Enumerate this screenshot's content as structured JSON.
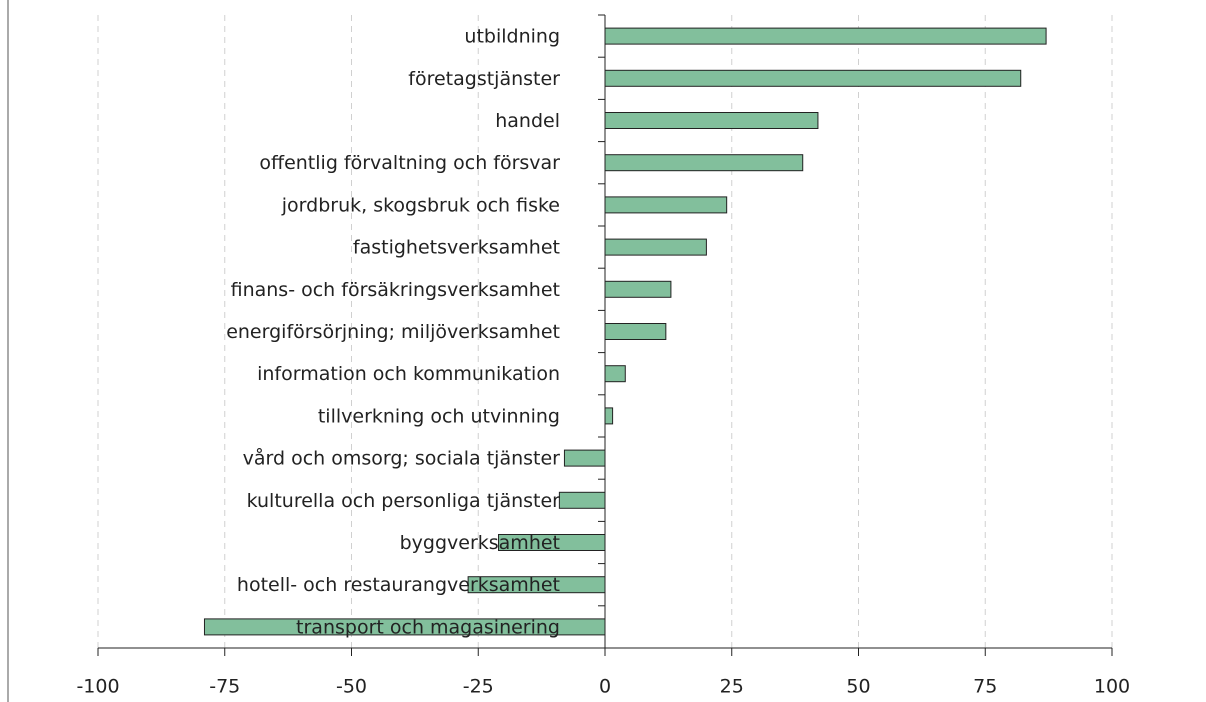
{
  "chart_data": {
    "type": "hbar",
    "categories": [
      "utbildning",
      "företagstjänster",
      "handel",
      "offentlig förvaltning och försvar",
      "jordbruk, skogsbruk och fiske",
      "fastighetsverksamhet",
      "finans- och försäkringsverksamhet",
      "energiförsörjning; miljöverksamhet",
      "information och kommunikation",
      "tillverkning och utvinning",
      "vård och omsorg; sociala tjänster",
      "kulturella och personliga tjänster",
      "byggverksamhet",
      "hotell- och restaurangverksamhet",
      "transport och magasinering"
    ],
    "values": [
      87,
      82,
      42,
      39,
      24,
      20,
      13,
      12,
      4,
      1.5,
      -8,
      -9,
      -21,
      -27,
      -79
    ],
    "color": "#82bf9c",
    "xlim": [
      -100,
      100
    ],
    "xticks": [
      -100,
      -75,
      -50,
      -25,
      0,
      25,
      50,
      75,
      100
    ],
    "grid": true
  }
}
